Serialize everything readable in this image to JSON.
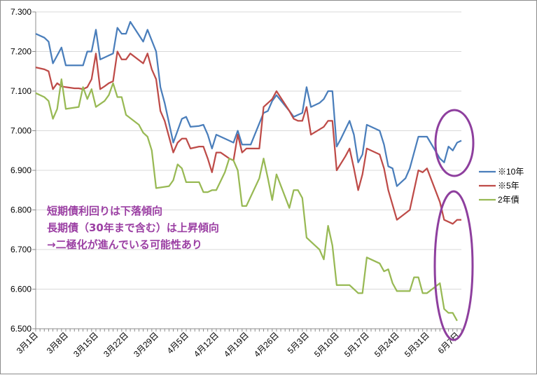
{
  "chart_data": {
    "type": "line",
    "ylim": [
      6.5,
      7.3
    ],
    "y_ticks": [
      "6.500",
      "6.600",
      "6.700",
      "6.800",
      "6.900",
      "7.000",
      "7.100",
      "7.200",
      "7.300"
    ],
    "x_tick_labels": [
      "3月1日",
      "3月8日",
      "3月15日",
      "3月22日",
      "3月29日",
      "4月5日",
      "4月12日",
      "4月19日",
      "4月26日",
      "5月3日",
      "5月10日",
      "5月17日",
      "5月24日",
      "5月31日",
      "6月7日"
    ],
    "x_tick_days": [
      0,
      7,
      14,
      21,
      28,
      35,
      42,
      49,
      56,
      63,
      70,
      77,
      84,
      91,
      98
    ],
    "x_range_days": [
      0,
      99
    ],
    "grid": "horizontal",
    "legend_position": "right",
    "series": [
      {
        "name": "※10年",
        "color": "#4a7ebb",
        "points": [
          [
            0,
            7.245
          ],
          [
            2,
            7.235
          ],
          [
            3,
            7.225
          ],
          [
            4,
            7.17
          ],
          [
            5,
            7.19
          ],
          [
            6,
            7.21
          ],
          [
            7,
            7.165
          ],
          [
            8,
            7.165
          ],
          [
            9,
            7.165
          ],
          [
            10,
            7.165
          ],
          [
            11,
            7.165
          ],
          [
            12,
            7.2
          ],
          [
            13,
            7.2
          ],
          [
            14,
            7.255
          ],
          [
            15,
            7.18
          ],
          [
            16,
            7.185
          ],
          [
            17,
            7.19
          ],
          [
            18,
            7.195
          ],
          [
            19,
            7.26
          ],
          [
            20,
            7.245
          ],
          [
            21,
            7.245
          ],
          [
            22,
            7.275
          ],
          [
            25,
            7.225
          ],
          [
            26,
            7.255
          ],
          [
            28,
            7.2
          ],
          [
            29,
            7.11
          ],
          [
            30,
            7.07
          ],
          [
            32,
            6.97
          ],
          [
            34,
            7.03
          ],
          [
            35,
            7.035
          ],
          [
            36,
            7.01
          ],
          [
            38,
            7.012
          ],
          [
            39,
            7.015
          ],
          [
            40,
            6.99
          ],
          [
            41,
            6.955
          ],
          [
            42,
            6.99
          ],
          [
            45,
            6.975
          ],
          [
            46,
            6.97
          ],
          [
            47,
            7.0
          ],
          [
            48,
            6.965
          ],
          [
            50,
            6.965
          ],
          [
            53,
            7.045
          ],
          [
            54,
            7.05
          ],
          [
            55,
            7.075
          ],
          [
            56,
            7.09
          ],
          [
            59,
            7.05
          ],
          [
            60,
            7.035
          ],
          [
            61,
            7.04
          ],
          [
            62,
            7.045
          ],
          [
            63,
            7.11
          ],
          [
            64,
            7.06
          ],
          [
            66,
            7.07
          ],
          [
            67,
            7.08
          ],
          [
            68,
            7.1
          ],
          [
            69,
            7.1
          ],
          [
            70,
            6.96
          ],
          [
            71,
            6.98
          ],
          [
            73,
            7.025
          ],
          [
            74,
            6.99
          ],
          [
            75,
            6.92
          ],
          [
            76,
            6.94
          ],
          [
            77,
            7.015
          ],
          [
            80,
            7.0
          ],
          [
            81,
            6.965
          ],
          [
            82,
            6.91
          ],
          [
            83,
            6.905
          ],
          [
            84,
            6.86
          ],
          [
            86,
            6.88
          ],
          [
            87,
            6.905
          ],
          [
            89,
            6.985
          ],
          [
            91,
            6.985
          ],
          [
            94,
            6.93
          ],
          [
            95,
            6.92
          ],
          [
            96,
            6.96
          ],
          [
            97,
            6.95
          ],
          [
            98,
            6.97
          ],
          [
            99,
            6.975
          ]
        ]
      },
      {
        "name": "※5年",
        "color": "#be4b48",
        "points": [
          [
            0,
            7.16
          ],
          [
            2,
            7.155
          ],
          [
            3,
            7.15
          ],
          [
            4,
            7.105
          ],
          [
            5,
            7.12
          ],
          [
            6,
            7.112
          ],
          [
            7,
            7.11
          ],
          [
            9,
            7.107
          ],
          [
            10,
            7.107
          ],
          [
            11,
            7.105
          ],
          [
            12,
            7.11
          ],
          [
            13,
            7.13
          ],
          [
            14,
            7.195
          ],
          [
            15,
            7.105
          ],
          [
            16,
            7.112
          ],
          [
            17,
            7.12
          ],
          [
            18,
            7.125
          ],
          [
            19,
            7.2
          ],
          [
            20,
            7.18
          ],
          [
            21,
            7.18
          ],
          [
            22,
            7.195
          ],
          [
            25,
            7.17
          ],
          [
            26,
            7.195
          ],
          [
            27,
            7.155
          ],
          [
            28,
            7.13
          ],
          [
            29,
            7.05
          ],
          [
            30,
            7.025
          ],
          [
            32,
            6.945
          ],
          [
            33,
            6.97
          ],
          [
            34,
            6.98
          ],
          [
            35,
            6.98
          ],
          [
            36,
            6.955
          ],
          [
            38,
            6.96
          ],
          [
            39,
            6.96
          ],
          [
            40,
            6.93
          ],
          [
            41,
            6.895
          ],
          [
            42,
            6.945
          ],
          [
            43,
            6.945
          ],
          [
            45,
            6.93
          ],
          [
            46,
            6.925
          ],
          [
            47,
            6.99
          ],
          [
            48,
            6.945
          ],
          [
            49,
            6.955
          ],
          [
            52,
            6.955
          ],
          [
            53,
            7.06
          ],
          [
            55,
            7.08
          ],
          [
            56,
            7.1
          ],
          [
            59,
            7.05
          ],
          [
            60,
            7.03
          ],
          [
            61,
            7.025
          ],
          [
            62,
            7.025
          ],
          [
            63,
            7.06
          ],
          [
            64,
            6.99
          ],
          [
            67,
            7.01
          ],
          [
            68,
            7.025
          ],
          [
            69,
            7.025
          ],
          [
            70,
            6.9
          ],
          [
            72,
            6.935
          ],
          [
            73,
            6.955
          ],
          [
            74,
            6.905
          ],
          [
            75,
            6.85
          ],
          [
            76,
            6.89
          ],
          [
            77,
            6.955
          ],
          [
            80,
            6.94
          ],
          [
            81,
            6.905
          ],
          [
            82,
            6.85
          ],
          [
            84,
            6.775
          ],
          [
            87,
            6.8
          ],
          [
            89,
            6.9
          ],
          [
            90,
            6.895
          ],
          [
            91,
            6.905
          ],
          [
            94,
            6.82
          ],
          [
            95,
            6.775
          ],
          [
            97,
            6.765
          ],
          [
            98,
            6.775
          ],
          [
            99,
            6.775
          ]
        ]
      },
      {
        "name": "2年債",
        "color": "#98b954",
        "points": [
          [
            0,
            7.095
          ],
          [
            2,
            7.085
          ],
          [
            3,
            7.075
          ],
          [
            4,
            7.03
          ],
          [
            5,
            7.055
          ],
          [
            6,
            7.13
          ],
          [
            7,
            7.055
          ],
          [
            10,
            7.06
          ],
          [
            11,
            7.11
          ],
          [
            12,
            7.08
          ],
          [
            13,
            7.105
          ],
          [
            14,
            7.06
          ],
          [
            16,
            7.075
          ],
          [
            17,
            7.09
          ],
          [
            18,
            7.12
          ],
          [
            19,
            7.085
          ],
          [
            20,
            7.085
          ],
          [
            21,
            7.04
          ],
          [
            24,
            7.015
          ],
          [
            25,
            6.995
          ],
          [
            26,
            6.985
          ],
          [
            27,
            6.95
          ],
          [
            28,
            6.855
          ],
          [
            31,
            6.86
          ],
          [
            32,
            6.875
          ],
          [
            33,
            6.915
          ],
          [
            34,
            6.905
          ],
          [
            35,
            6.87
          ],
          [
            38,
            6.87
          ],
          [
            39,
            6.845
          ],
          [
            40,
            6.845
          ],
          [
            41,
            6.85
          ],
          [
            42,
            6.85
          ],
          [
            44,
            6.895
          ],
          [
            45,
            6.93
          ],
          [
            46,
            6.925
          ],
          [
            47,
            6.9
          ],
          [
            48,
            6.81
          ],
          [
            49,
            6.81
          ],
          [
            52,
            6.88
          ],
          [
            53,
            6.93
          ],
          [
            54,
            6.88
          ],
          [
            55,
            6.825
          ],
          [
            56,
            6.89
          ],
          [
            59,
            6.805
          ],
          [
            60,
            6.85
          ],
          [
            61,
            6.85
          ],
          [
            62,
            6.83
          ],
          [
            63,
            6.73
          ],
          [
            65,
            6.71
          ],
          [
            66,
            6.7
          ],
          [
            67,
            6.675
          ],
          [
            68,
            6.76
          ],
          [
            69,
            6.71
          ],
          [
            70,
            6.61
          ],
          [
            73,
            6.61
          ],
          [
            74,
            6.6
          ],
          [
            75,
            6.59
          ],
          [
            76,
            6.59
          ],
          [
            77,
            6.68
          ],
          [
            80,
            6.665
          ],
          [
            81,
            6.645
          ],
          [
            82,
            6.65
          ],
          [
            83,
            6.615
          ],
          [
            84,
            6.595
          ],
          [
            87,
            6.595
          ],
          [
            88,
            6.63
          ],
          [
            89,
            6.63
          ],
          [
            90,
            6.59
          ],
          [
            91,
            6.59
          ],
          [
            94,
            6.615
          ],
          [
            95,
            6.55
          ],
          [
            96,
            6.54
          ],
          [
            97,
            6.54
          ],
          [
            98,
            6.52
          ]
        ]
      }
    ]
  },
  "annotation_lines": [
    "短期債利回りは下落傾向",
    "長期債（30年まで含む）は上昇傾向",
    "→二極化が進んでいる可能性あり"
  ],
  "highlight_color": "#8e3f9e"
}
